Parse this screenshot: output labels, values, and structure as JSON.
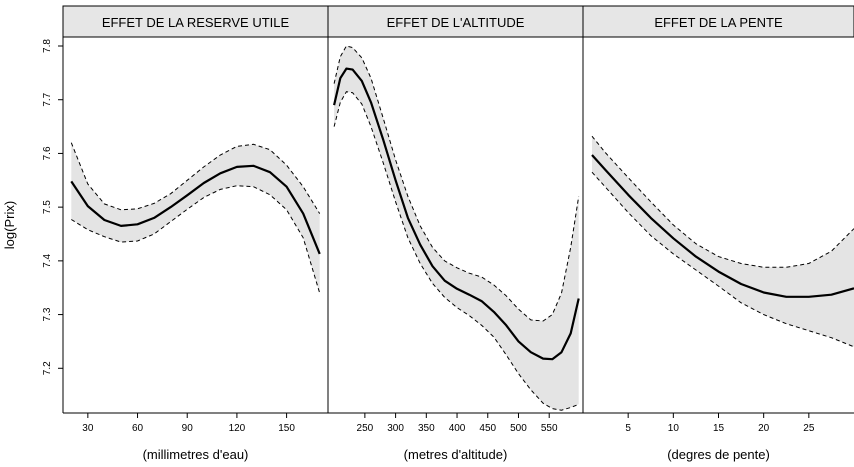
{
  "chart_data": {
    "type": "line",
    "ylabel": "log(Prix)",
    "ylim": [
      7.1,
      7.8
    ],
    "yticks": [
      7.2,
      7.3,
      7.4,
      7.5,
      7.6,
      7.7,
      7.8
    ],
    "panels": [
      {
        "title": "EFFET DE LA RESERVE UTILE",
        "xlabel": "(millimetres d'eau)",
        "xlim": [
          15,
          175
        ],
        "xticks": [
          30,
          60,
          90,
          120,
          150
        ],
        "fit": [
          [
            20,
            7.548
          ],
          [
            30,
            7.502
          ],
          [
            40,
            7.476
          ],
          [
            50,
            7.465
          ],
          [
            60,
            7.468
          ],
          [
            70,
            7.48
          ],
          [
            80,
            7.5
          ],
          [
            90,
            7.522
          ],
          [
            100,
            7.545
          ],
          [
            110,
            7.563
          ],
          [
            120,
            7.575
          ],
          [
            130,
            7.577
          ],
          [
            140,
            7.565
          ],
          [
            150,
            7.538
          ],
          [
            160,
            7.488
          ],
          [
            170,
            7.413
          ]
        ],
        "upper": [
          [
            20,
            7.62
          ],
          [
            30,
            7.543
          ],
          [
            40,
            7.506
          ],
          [
            50,
            7.495
          ],
          [
            60,
            7.497
          ],
          [
            70,
            7.507
          ],
          [
            80,
            7.525
          ],
          [
            90,
            7.55
          ],
          [
            100,
            7.575
          ],
          [
            110,
            7.597
          ],
          [
            120,
            7.613
          ],
          [
            130,
            7.617
          ],
          [
            140,
            7.607
          ],
          [
            150,
            7.578
          ],
          [
            160,
            7.538
          ],
          [
            170,
            7.488
          ]
        ],
        "lower": [
          [
            20,
            7.477
          ],
          [
            30,
            7.458
          ],
          [
            40,
            7.445
          ],
          [
            50,
            7.435
          ],
          [
            60,
            7.437
          ],
          [
            70,
            7.45
          ],
          [
            80,
            7.473
          ],
          [
            90,
            7.496
          ],
          [
            100,
            7.518
          ],
          [
            110,
            7.533
          ],
          [
            120,
            7.54
          ],
          [
            130,
            7.538
          ],
          [
            140,
            7.523
          ],
          [
            150,
            7.495
          ],
          [
            160,
            7.443
          ],
          [
            170,
            7.34
          ]
        ]
      },
      {
        "title": "EFFET DE L'ALTITUDE",
        "xlabel": "(metres d'altitude)",
        "xlim": [
          190,
          605
        ],
        "xticks": [
          250,
          300,
          350,
          400,
          450,
          500,
          550
        ],
        "fit": [
          [
            200,
            7.69
          ],
          [
            210,
            7.74
          ],
          [
            220,
            7.758
          ],
          [
            230,
            7.756
          ],
          [
            245,
            7.735
          ],
          [
            260,
            7.695
          ],
          [
            280,
            7.625
          ],
          [
            300,
            7.55
          ],
          [
            320,
            7.48
          ],
          [
            340,
            7.43
          ],
          [
            360,
            7.39
          ],
          [
            380,
            7.363
          ],
          [
            400,
            7.348
          ],
          [
            420,
            7.337
          ],
          [
            440,
            7.325
          ],
          [
            460,
            7.305
          ],
          [
            480,
            7.28
          ],
          [
            500,
            7.25
          ],
          [
            520,
            7.23
          ],
          [
            540,
            7.218
          ],
          [
            555,
            7.217
          ],
          [
            570,
            7.23
          ],
          [
            585,
            7.265
          ],
          [
            598,
            7.33
          ]
        ],
        "upper": [
          [
            200,
            7.73
          ],
          [
            210,
            7.78
          ],
          [
            220,
            7.8
          ],
          [
            230,
            7.797
          ],
          [
            245,
            7.778
          ],
          [
            260,
            7.74
          ],
          [
            280,
            7.665
          ],
          [
            300,
            7.588
          ],
          [
            320,
            7.52
          ],
          [
            340,
            7.465
          ],
          [
            360,
            7.425
          ],
          [
            380,
            7.4
          ],
          [
            400,
            7.387
          ],
          [
            420,
            7.377
          ],
          [
            440,
            7.37
          ],
          [
            460,
            7.355
          ],
          [
            480,
            7.335
          ],
          [
            500,
            7.31
          ],
          [
            520,
            7.29
          ],
          [
            540,
            7.288
          ],
          [
            555,
            7.3
          ],
          [
            570,
            7.34
          ],
          [
            585,
            7.425
          ],
          [
            598,
            7.52
          ]
        ],
        "lower": [
          [
            200,
            7.65
          ],
          [
            210,
            7.695
          ],
          [
            220,
            7.715
          ],
          [
            230,
            7.713
          ],
          [
            245,
            7.692
          ],
          [
            260,
            7.65
          ],
          [
            280,
            7.582
          ],
          [
            300,
            7.51
          ],
          [
            320,
            7.443
          ],
          [
            340,
            7.395
          ],
          [
            360,
            7.358
          ],
          [
            380,
            7.332
          ],
          [
            400,
            7.313
          ],
          [
            420,
            7.298
          ],
          [
            440,
            7.28
          ],
          [
            460,
            7.258
          ],
          [
            480,
            7.225
          ],
          [
            500,
            7.19
          ],
          [
            520,
            7.16
          ],
          [
            540,
            7.135
          ],
          [
            555,
            7.125
          ],
          [
            570,
            7.122
          ],
          [
            585,
            7.127
          ],
          [
            598,
            7.133
          ]
        ]
      },
      {
        "title": "EFFET DE LA PENTE",
        "xlabel": "(degres de pente)",
        "xlim": [
          0,
          30
        ],
        "xticks": [
          5,
          10,
          15,
          20,
          25
        ],
        "fit": [
          [
            1,
            7.597
          ],
          [
            2.5,
            7.569
          ],
          [
            5,
            7.523
          ],
          [
            7.5,
            7.48
          ],
          [
            10,
            7.442
          ],
          [
            12.5,
            7.408
          ],
          [
            15,
            7.38
          ],
          [
            17.5,
            7.357
          ],
          [
            20,
            7.341
          ],
          [
            22.5,
            7.333
          ],
          [
            25,
            7.333
          ],
          [
            27.5,
            7.337
          ],
          [
            30,
            7.349
          ]
        ],
        "upper": [
          [
            1,
            7.632
          ],
          [
            2.5,
            7.601
          ],
          [
            5,
            7.555
          ],
          [
            7.5,
            7.51
          ],
          [
            10,
            7.467
          ],
          [
            12.5,
            7.432
          ],
          [
            15,
            7.408
          ],
          [
            17.5,
            7.395
          ],
          [
            20,
            7.388
          ],
          [
            22.5,
            7.388
          ],
          [
            25,
            7.395
          ],
          [
            27.5,
            7.418
          ],
          [
            30,
            7.46
          ]
        ],
        "lower": [
          [
            1,
            7.565
          ],
          [
            2.5,
            7.537
          ],
          [
            5,
            7.49
          ],
          [
            7.5,
            7.447
          ],
          [
            10,
            7.413
          ],
          [
            12.5,
            7.383
          ],
          [
            15,
            7.353
          ],
          [
            17.5,
            7.322
          ],
          [
            20,
            7.3
          ],
          [
            22.5,
            7.283
          ],
          [
            25,
            7.27
          ],
          [
            27.5,
            7.257
          ],
          [
            30,
            7.24
          ]
        ]
      }
    ]
  }
}
